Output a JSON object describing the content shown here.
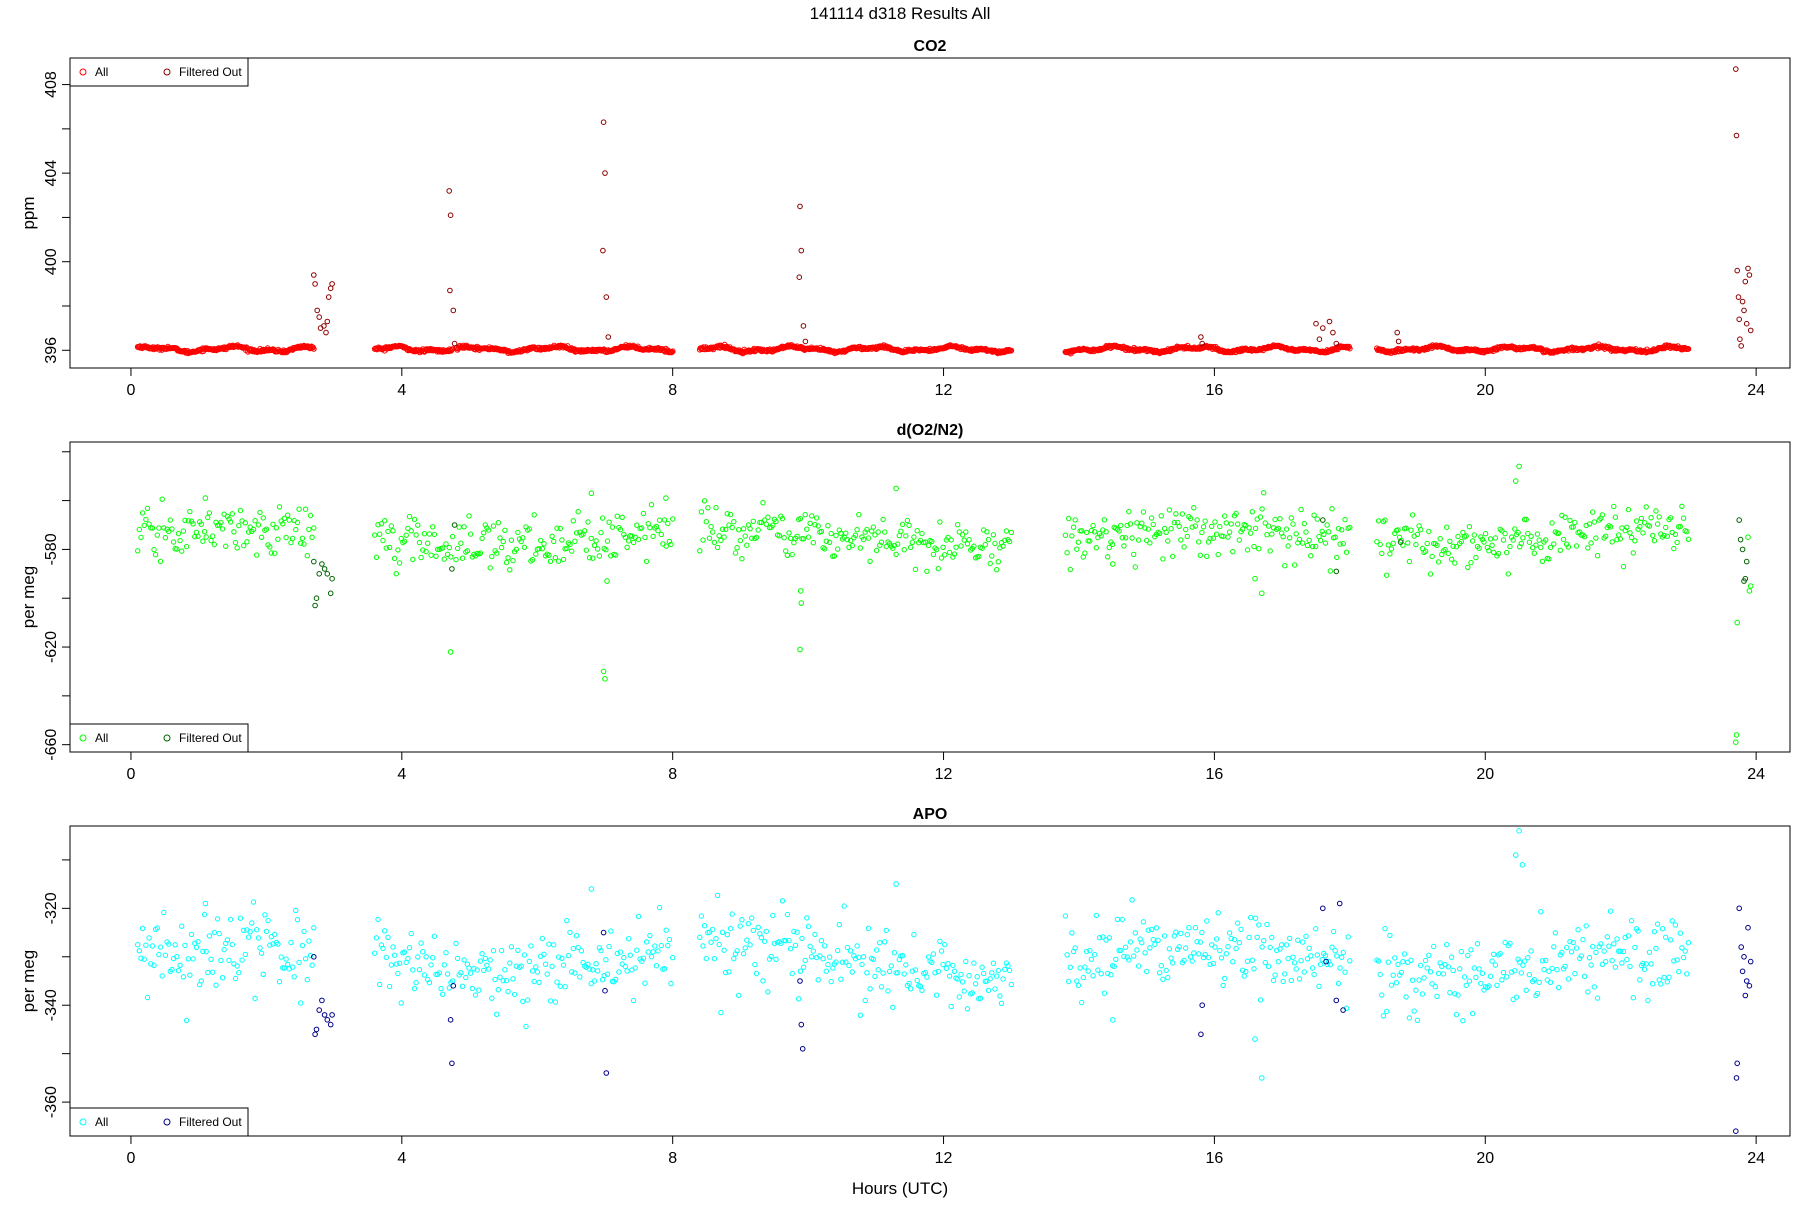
{
  "page": {
    "title": "141114   d318   Results All",
    "xlabel": "Hours (UTC)"
  },
  "colors": {
    "co2_all": "#ff0000",
    "co2_filtered": "#8b0000",
    "o2_all": "#00ff00",
    "o2_filtered": "#006400",
    "apo_all": "#00ffff",
    "apo_filtered": "#00008b"
  },
  "chart_data": [
    {
      "type": "scatter",
      "title": "CO2",
      "ylabel": "ppm",
      "xlim": [
        -0.9,
        24.5
      ],
      "ylim": [
        395.2,
        409.2
      ],
      "xticks": [
        0,
        4,
        8,
        12,
        16,
        20,
        24
      ],
      "yticks": [
        396,
        400,
        404,
        408
      ],
      "legend_position": "top-left",
      "legend": [
        "All",
        "Filtered Out"
      ],
      "segments": [
        [
          0.1,
          2.7
        ],
        [
          3.6,
          4.75
        ],
        [
          4.8,
          8.0
        ],
        [
          8.4,
          13.0
        ],
        [
          13.8,
          18.0
        ],
        [
          18.4,
          23.0
        ]
      ],
      "baseline": 396.05,
      "noise": 0.08,
      "outliers": [
        {
          "x": 2.7,
          "y": 399.4,
          "f": 1
        },
        {
          "x": 2.72,
          "y": 399.0,
          "f": 1
        },
        {
          "x": 2.75,
          "y": 397.8,
          "f": 1
        },
        {
          "x": 2.78,
          "y": 397.5,
          "f": 1
        },
        {
          "x": 2.8,
          "y": 397.0,
          "f": 1
        },
        {
          "x": 2.85,
          "y": 397.1,
          "f": 1
        },
        {
          "x": 2.88,
          "y": 396.8,
          "f": 1
        },
        {
          "x": 2.92,
          "y": 398.4,
          "f": 1
        },
        {
          "x": 2.95,
          "y": 398.8,
          "f": 1
        },
        {
          "x": 2.97,
          "y": 399.0,
          "f": 1
        },
        {
          "x": 2.9,
          "y": 397.3,
          "f": 1
        },
        {
          "x": 4.7,
          "y": 403.2,
          "f": 1
        },
        {
          "x": 4.72,
          "y": 402.1,
          "f": 1
        },
        {
          "x": 4.71,
          "y": 398.7,
          "f": 1
        },
        {
          "x": 4.76,
          "y": 397.8,
          "f": 1
        },
        {
          "x": 4.78,
          "y": 396.3,
          "f": 1
        },
        {
          "x": 6.98,
          "y": 406.3,
          "f": 1
        },
        {
          "x": 7.0,
          "y": 404.0,
          "f": 1
        },
        {
          "x": 6.97,
          "y": 400.5,
          "f": 1
        },
        {
          "x": 7.02,
          "y": 398.4,
          "f": 1
        },
        {
          "x": 7.05,
          "y": 396.6,
          "f": 1
        },
        {
          "x": 9.88,
          "y": 402.5,
          "f": 1
        },
        {
          "x": 9.9,
          "y": 400.5,
          "f": 1
        },
        {
          "x": 9.87,
          "y": 399.3,
          "f": 1
        },
        {
          "x": 9.93,
          "y": 397.1,
          "f": 1
        },
        {
          "x": 9.96,
          "y": 396.4,
          "f": 1
        },
        {
          "x": 15.8,
          "y": 396.6,
          "f": 1
        },
        {
          "x": 15.82,
          "y": 396.3,
          "f": 1
        },
        {
          "x": 17.5,
          "y": 397.2,
          "f": 1
        },
        {
          "x": 17.55,
          "y": 396.5,
          "f": 1
        },
        {
          "x": 17.6,
          "y": 397.0,
          "f": 1
        },
        {
          "x": 17.7,
          "y": 397.3,
          "f": 1
        },
        {
          "x": 17.75,
          "y": 396.8,
          "f": 1
        },
        {
          "x": 17.8,
          "y": 396.3,
          "f": 1
        },
        {
          "x": 18.7,
          "y": 396.8,
          "f": 1
        },
        {
          "x": 18.72,
          "y": 396.4,
          "f": 1
        },
        {
          "x": 23.7,
          "y": 408.7,
          "f": 1
        },
        {
          "x": 23.71,
          "y": 405.7,
          "f": 1
        },
        {
          "x": 23.72,
          "y": 399.6,
          "f": 1
        },
        {
          "x": 23.74,
          "y": 398.4,
          "f": 1
        },
        {
          "x": 23.75,
          "y": 397.4,
          "f": 1
        },
        {
          "x": 23.76,
          "y": 396.5,
          "f": 1
        },
        {
          "x": 23.78,
          "y": 396.2,
          "f": 1
        },
        {
          "x": 23.8,
          "y": 398.2,
          "f": 1
        },
        {
          "x": 23.82,
          "y": 397.8,
          "f": 1
        },
        {
          "x": 23.84,
          "y": 399.1,
          "f": 1
        },
        {
          "x": 23.86,
          "y": 397.2,
          "f": 1
        },
        {
          "x": 23.88,
          "y": 399.7,
          "f": 1
        },
        {
          "x": 23.9,
          "y": 399.4,
          "f": 1
        },
        {
          "x": 23.92,
          "y": 396.9,
          "f": 1
        }
      ]
    },
    {
      "type": "scatter",
      "title": "d(O2/N2)",
      "ylabel": "per meg",
      "xlim": [
        -0.9,
        24.5
      ],
      "ylim": [
        -663,
        -536
      ],
      "xticks": [
        0,
        4,
        8,
        12,
        16,
        20,
        24
      ],
      "yticks": [
        -580,
        -620,
        -660
      ],
      "legend_position": "bottom-left",
      "legend": [
        "All",
        "Filtered Out"
      ],
      "segments": [
        [
          0.1,
          2.7
        ],
        [
          3.6,
          4.75
        ],
        [
          4.8,
          8.0
        ],
        [
          8.4,
          13.0
        ],
        [
          13.8,
          18.0
        ],
        [
          18.4,
          23.0
        ]
      ],
      "baseline": -575,
      "noise": 5,
      "outliers": [
        {
          "x": 1.1,
          "y": -559,
          "f": 0
        },
        {
          "x": 6.8,
          "y": -557,
          "f": 0
        },
        {
          "x": 7.9,
          "y": -559,
          "f": 0
        },
        {
          "x": 11.3,
          "y": -555,
          "f": 0
        },
        {
          "x": 20.5,
          "y": -546,
          "f": 0
        },
        {
          "x": 20.45,
          "y": -552,
          "f": 0
        },
        {
          "x": 16.7,
          "y": -598,
          "f": 0
        },
        {
          "x": 14.5,
          "y": -586,
          "f": 0
        },
        {
          "x": 16.6,
          "y": -592,
          "f": 0
        },
        {
          "x": 2.7,
          "y": -585,
          "f": 1
        },
        {
          "x": 2.72,
          "y": -603,
          "f": 1
        },
        {
          "x": 2.74,
          "y": -600,
          "f": 1
        },
        {
          "x": 2.78,
          "y": -590,
          "f": 1
        },
        {
          "x": 2.82,
          "y": -586,
          "f": 1
        },
        {
          "x": 2.86,
          "y": -588,
          "f": 1
        },
        {
          "x": 2.9,
          "y": -590,
          "f": 1
        },
        {
          "x": 2.95,
          "y": -598,
          "f": 1
        },
        {
          "x": 2.97,
          "y": -592,
          "f": 1
        },
        {
          "x": 4.72,
          "y": -622,
          "f": 0
        },
        {
          "x": 4.74,
          "y": -588,
          "f": 1
        },
        {
          "x": 4.78,
          "y": -570,
          "f": 1
        },
        {
          "x": 6.98,
          "y": -630,
          "f": 0
        },
        {
          "x": 7.0,
          "y": -633,
          "f": 0
        },
        {
          "x": 7.03,
          "y": -593,
          "f": 0
        },
        {
          "x": 9.88,
          "y": -621,
          "f": 0
        },
        {
          "x": 9.9,
          "y": -602,
          "f": 0
        },
        {
          "x": 9.89,
          "y": -597,
          "f": 0
        },
        {
          "x": 17.6,
          "y": -568,
          "f": 1
        },
        {
          "x": 17.8,
          "y": -589,
          "f": 1
        },
        {
          "x": 18.75,
          "y": -577,
          "f": 1
        },
        {
          "x": 23.7,
          "y": -659,
          "f": 0
        },
        {
          "x": 23.71,
          "y": -656,
          "f": 0
        },
        {
          "x": 23.72,
          "y": -610,
          "f": 0
        },
        {
          "x": 23.75,
          "y": -568,
          "f": 1
        },
        {
          "x": 23.77,
          "y": -576,
          "f": 1
        },
        {
          "x": 23.8,
          "y": -580,
          "f": 1
        },
        {
          "x": 23.82,
          "y": -593,
          "f": 1
        },
        {
          "x": 23.84,
          "y": -592,
          "f": 1
        },
        {
          "x": 23.86,
          "y": -585,
          "f": 1
        },
        {
          "x": 23.88,
          "y": -575,
          "f": 0
        },
        {
          "x": 23.9,
          "y": -597,
          "f": 0
        },
        {
          "x": 23.92,
          "y": -595,
          "f": 0
        }
      ]
    },
    {
      "type": "scatter",
      "title": "APO",
      "ylabel": "per meg",
      "xlim": [
        -0.9,
        24.5
      ],
      "ylim": [
        -367,
        -303
      ],
      "xticks": [
        0,
        4,
        8,
        12,
        16,
        20,
        24
      ],
      "yticks": [
        -320,
        -340,
        -360
      ],
      "legend_position": "bottom-left",
      "legend": [
        "All",
        "Filtered Out"
      ],
      "segments": [
        [
          0.1,
          2.7
        ],
        [
          3.6,
          4.75
        ],
        [
          4.8,
          8.0
        ],
        [
          8.4,
          13.0
        ],
        [
          13.8,
          18.0
        ],
        [
          18.4,
          23.0
        ]
      ],
      "baseline": -331,
      "noise": 4,
      "outliers": [
        {
          "x": 20.5,
          "y": -304,
          "f": 0
        },
        {
          "x": 20.45,
          "y": -309,
          "f": 0
        },
        {
          "x": 20.55,
          "y": -311,
          "f": 0
        },
        {
          "x": 11.3,
          "y": -315,
          "f": 0
        },
        {
          "x": 6.8,
          "y": -316,
          "f": 0
        },
        {
          "x": 1.1,
          "y": -319,
          "f": 0
        },
        {
          "x": 16.7,
          "y": -355,
          "f": 0
        },
        {
          "x": 16.6,
          "y": -347,
          "f": 0
        },
        {
          "x": 14.5,
          "y": -343,
          "f": 0
        },
        {
          "x": 2.7,
          "y": -330,
          "f": 1
        },
        {
          "x": 2.72,
          "y": -346,
          "f": 1
        },
        {
          "x": 2.74,
          "y": -345,
          "f": 1
        },
        {
          "x": 2.78,
          "y": -341,
          "f": 1
        },
        {
          "x": 2.82,
          "y": -339,
          "f": 1
        },
        {
          "x": 2.86,
          "y": -342,
          "f": 1
        },
        {
          "x": 2.9,
          "y": -343,
          "f": 1
        },
        {
          "x": 2.95,
          "y": -344,
          "f": 1
        },
        {
          "x": 2.97,
          "y": -342,
          "f": 1
        },
        {
          "x": 4.72,
          "y": -343,
          "f": 1
        },
        {
          "x": 4.74,
          "y": -352,
          "f": 1
        },
        {
          "x": 4.76,
          "y": -336,
          "f": 1
        },
        {
          "x": 6.98,
          "y": -325,
          "f": 1
        },
        {
          "x": 7.0,
          "y": -337,
          "f": 1
        },
        {
          "x": 7.02,
          "y": -354,
          "f": 1
        },
        {
          "x": 9.88,
          "y": -335,
          "f": 1
        },
        {
          "x": 9.9,
          "y": -344,
          "f": 1
        },
        {
          "x": 9.92,
          "y": -349,
          "f": 1
        },
        {
          "x": 15.8,
          "y": -346,
          "f": 1
        },
        {
          "x": 15.82,
          "y": -340,
          "f": 1
        },
        {
          "x": 17.6,
          "y": -320,
          "f": 1
        },
        {
          "x": 17.65,
          "y": -331,
          "f": 1
        },
        {
          "x": 17.8,
          "y": -339,
          "f": 1
        },
        {
          "x": 17.85,
          "y": -319,
          "f": 1
        },
        {
          "x": 17.9,
          "y": -341,
          "f": 1
        },
        {
          "x": 23.7,
          "y": -366,
          "f": 1
        },
        {
          "x": 23.71,
          "y": -355,
          "f": 1
        },
        {
          "x": 23.72,
          "y": -352,
          "f": 1
        },
        {
          "x": 23.75,
          "y": -320,
          "f": 1
        },
        {
          "x": 23.78,
          "y": -328,
          "f": 1
        },
        {
          "x": 23.8,
          "y": -333,
          "f": 1
        },
        {
          "x": 23.82,
          "y": -330,
          "f": 1
        },
        {
          "x": 23.84,
          "y": -338,
          "f": 1
        },
        {
          "x": 23.86,
          "y": -335,
          "f": 1
        },
        {
          "x": 23.88,
          "y": -324,
          "f": 1
        },
        {
          "x": 23.9,
          "y": -336,
          "f": 1
        },
        {
          "x": 23.92,
          "y": -331,
          "f": 1
        }
      ]
    }
  ]
}
